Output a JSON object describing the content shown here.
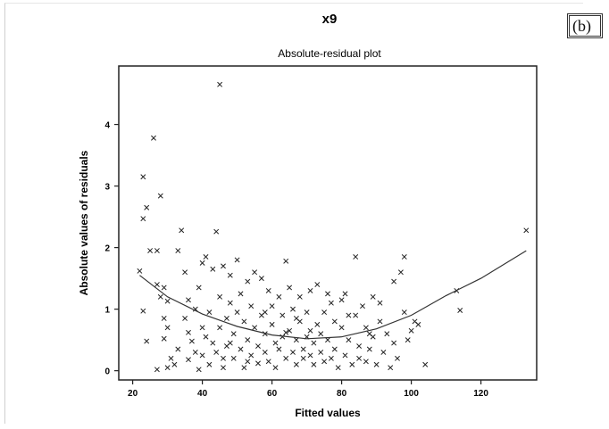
{
  "panel_label": "(b)",
  "chart_data": {
    "type": "scatter",
    "title": "x9",
    "subtitle": "Absolute-residual plot",
    "xlabel": "Fitted values",
    "ylabel": "Absolute values of residuals",
    "xlim": [
      16,
      136
    ],
    "ylim": [
      -0.15,
      4.95
    ],
    "xticks": [
      20,
      40,
      60,
      80,
      100,
      120
    ],
    "yticks": [
      0,
      1,
      2,
      3,
      4
    ],
    "marker": "x",
    "grid": false,
    "points": [
      [
        22,
        1.62
      ],
      [
        23,
        3.15
      ],
      [
        23,
        2.47
      ],
      [
        23,
        0.97
      ],
      [
        24,
        2.65
      ],
      [
        25,
        1.95
      ],
      [
        24,
        0.48
      ],
      [
        26,
        3.78
      ],
      [
        27,
        1.95
      ],
      [
        28,
        2.84
      ],
      [
        27,
        1.4
      ],
      [
        29,
        1.35
      ],
      [
        30,
        1.13
      ],
      [
        28,
        1.2
      ],
      [
        29,
        0.85
      ],
      [
        30,
        0.7
      ],
      [
        29,
        0.52
      ],
      [
        31,
        0.2
      ],
      [
        32,
        0.1
      ],
      [
        30,
        0.05
      ],
      [
        27,
        0.02
      ],
      [
        33,
        0.35
      ],
      [
        33,
        1.95
      ],
      [
        34,
        2.28
      ],
      [
        35,
        1.6
      ],
      [
        35,
        0.85
      ],
      [
        36,
        0.62
      ],
      [
        36,
        0.18
      ],
      [
        37,
        0.48
      ],
      [
        38,
        1.0
      ],
      [
        38,
        0.3
      ],
      [
        39,
        0.02
      ],
      [
        39,
        1.35
      ],
      [
        40,
        1.75
      ],
      [
        40,
        0.7
      ],
      [
        41,
        1.85
      ],
      [
        41,
        0.55
      ],
      [
        42,
        0.95
      ],
      [
        42,
        0.1
      ],
      [
        43,
        1.65
      ],
      [
        43,
        0.45
      ],
      [
        44,
        2.26
      ],
      [
        44,
        0.3
      ],
      [
        45,
        4.65
      ],
      [
        45,
        1.2
      ],
      [
        45,
        0.7
      ],
      [
        46,
        0.05
      ],
      [
        46,
        1.7
      ],
      [
        47,
        0.85
      ],
      [
        47,
        0.4
      ],
      [
        48,
        1.55
      ],
      [
        48,
        1.1
      ],
      [
        49,
        0.6
      ],
      [
        49,
        0.2
      ],
      [
        50,
        1.8
      ],
      [
        50,
        0.95
      ],
      [
        51,
        0.35
      ],
      [
        51,
        1.25
      ],
      [
        52,
        0.8
      ],
      [
        52,
        0.05
      ],
      [
        53,
        0.5
      ],
      [
        53,
        1.45
      ],
      [
        54,
        1.05
      ],
      [
        54,
        0.25
      ],
      [
        55,
        0.7
      ],
      [
        55,
        1.6
      ],
      [
        56,
        0.4
      ],
      [
        56,
        0.12
      ],
      [
        57,
        1.5
      ],
      [
        57,
        0.9
      ],
      [
        58,
        0.6
      ],
      [
        58,
        0.3
      ],
      [
        59,
        1.3
      ],
      [
        59,
        0.15
      ],
      [
        60,
        0.75
      ],
      [
        60,
        1.05
      ],
      [
        61,
        0.45
      ],
      [
        61,
        0.05
      ],
      [
        62,
        1.2
      ],
      [
        62,
        0.35
      ],
      [
        63,
        0.9
      ],
      [
        63,
        0.55
      ],
      [
        64,
        1.78
      ],
      [
        64,
        0.2
      ],
      [
        65,
        1.35
      ],
      [
        65,
        0.65
      ],
      [
        66,
        0.3
      ],
      [
        66,
        1.0
      ],
      [
        67,
        0.5
      ],
      [
        67,
        0.1
      ],
      [
        68,
        1.2
      ],
      [
        68,
        0.8
      ],
      [
        69,
        0.35
      ],
      [
        69,
        0.2
      ],
      [
        70,
        0.95
      ],
      [
        70,
        0.55
      ],
      [
        71,
        0.25
      ],
      [
        71,
        1.3
      ],
      [
        72,
        0.45
      ],
      [
        72,
        0.1
      ],
      [
        73,
        0.75
      ],
      [
        73,
        1.4
      ],
      [
        74,
        0.3
      ],
      [
        74,
        0.6
      ],
      [
        75,
        0.15
      ],
      [
        75,
        0.95
      ],
      [
        76,
        0.5
      ],
      [
        77,
        0.2
      ],
      [
        77,
        1.1
      ],
      [
        78,
        0.8
      ],
      [
        78,
        0.35
      ],
      [
        79,
        0.05
      ],
      [
        80,
        1.15
      ],
      [
        80,
        0.7
      ],
      [
        81,
        0.25
      ],
      [
        81,
        1.25
      ],
      [
        82,
        0.5
      ],
      [
        83,
        0.1
      ],
      [
        84,
        0.9
      ],
      [
        84,
        1.85
      ],
      [
        85,
        0.4
      ],
      [
        85,
        0.2
      ],
      [
        86,
        1.05
      ],
      [
        87,
        0.7
      ],
      [
        87,
        0.15
      ],
      [
        88,
        0.35
      ],
      [
        89,
        1.2
      ],
      [
        89,
        0.55
      ],
      [
        90,
        0.1
      ],
      [
        91,
        0.8
      ],
      [
        91,
        1.1
      ],
      [
        92,
        0.3
      ],
      [
        93,
        0.6
      ],
      [
        94,
        0.05
      ],
      [
        95,
        1.45
      ],
      [
        95,
        0.45
      ],
      [
        96,
        0.2
      ],
      [
        97,
        1.6
      ],
      [
        98,
        0.95
      ],
      [
        98,
        1.85
      ],
      [
        99,
        0.5
      ],
      [
        100,
        0.65
      ],
      [
        101,
        0.8
      ],
      [
        102,
        0.75
      ],
      [
        104,
        0.1
      ],
      [
        113,
        1.3
      ],
      [
        114,
        0.98
      ],
      [
        133,
        2.28
      ],
      [
        64,
        0.62
      ],
      [
        58,
        0.95
      ],
      [
        46,
        0.2
      ],
      [
        53,
        0.15
      ],
      [
        67,
        0.85
      ],
      [
        76,
        1.25
      ],
      [
        82,
        0.9
      ],
      [
        88,
        0.6
      ],
      [
        40,
        0.25
      ],
      [
        36,
        1.15
      ],
      [
        48,
        0.45
      ],
      [
        71,
        0.65
      ]
    ],
    "trend_line": {
      "type": "quadratic-fit",
      "x": [
        22,
        30,
        40,
        50,
        60,
        70,
        80,
        90,
        100,
        110,
        120,
        133
      ],
      "y": [
        1.55,
        1.2,
        0.92,
        0.72,
        0.58,
        0.52,
        0.55,
        0.68,
        0.9,
        1.22,
        1.5,
        1.95
      ]
    }
  }
}
